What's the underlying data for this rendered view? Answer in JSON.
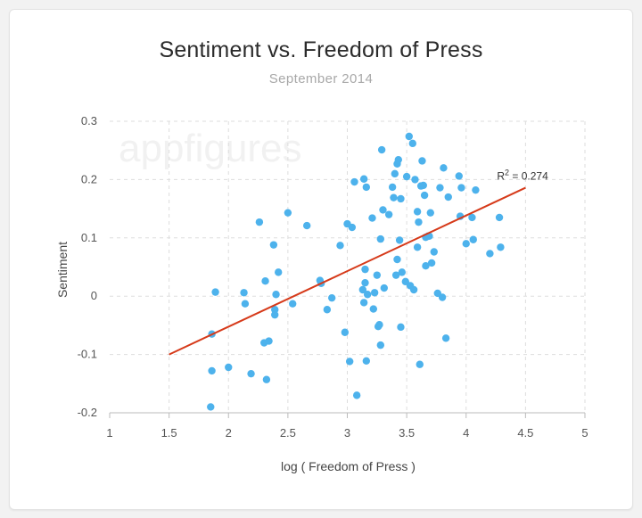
{
  "watermark": "appfigures",
  "chart_data": {
    "type": "scatter",
    "title": "Sentiment vs. Freedom of Press",
    "subtitle": "September 2014",
    "xlabel": "log ( Freedom of Press )",
    "ylabel": "Sentiment",
    "xlim": [
      1,
      5
    ],
    "ylim": [
      -0.2,
      0.3
    ],
    "xticks": [
      "1",
      "1.5",
      "2",
      "2.5",
      "3",
      "3.5",
      "4",
      "4.5",
      "5"
    ],
    "yticks": [
      "-0.2",
      "-0.1",
      "0",
      "0.1",
      "0.2",
      "0.3"
    ],
    "grid": true,
    "point_color": "#4db2ec",
    "trendline": {
      "color": "#d63a1a",
      "x": [
        1.5,
        4.5
      ],
      "y": [
        -0.1,
        0.186
      ],
      "label": "R",
      "label_sup": "2",
      "label_value": " = 0.274"
    },
    "series": [
      {
        "points": [
          [
            1.85,
            -0.19
          ],
          [
            1.86,
            -0.065
          ],
          [
            1.86,
            -0.128
          ],
          [
            1.89,
            0.007
          ],
          [
            2.0,
            -0.122
          ],
          [
            2.13,
            0.006
          ],
          [
            2.14,
            -0.013
          ],
          [
            2.19,
            -0.133
          ],
          [
            2.26,
            0.127
          ],
          [
            2.3,
            -0.08
          ],
          [
            2.31,
            0.026
          ],
          [
            2.32,
            -0.143
          ],
          [
            2.34,
            -0.077
          ],
          [
            2.38,
            0.088
          ],
          [
            2.39,
            -0.023
          ],
          [
            2.39,
            -0.032
          ],
          [
            2.4,
            0.003
          ],
          [
            2.42,
            0.041
          ],
          [
            2.5,
            0.143
          ],
          [
            2.54,
            -0.013
          ],
          [
            2.66,
            0.121
          ],
          [
            2.77,
            0.027
          ],
          [
            2.78,
            0.022
          ],
          [
            2.83,
            -0.023
          ],
          [
            2.87,
            -0.003
          ],
          [
            2.94,
            0.087
          ],
          [
            2.98,
            -0.062
          ],
          [
            3.0,
            0.124
          ],
          [
            3.02,
            -0.112
          ],
          [
            3.04,
            0.118
          ],
          [
            3.06,
            0.196
          ],
          [
            3.08,
            -0.17
          ],
          [
            3.13,
            0.011
          ],
          [
            3.14,
            0.201
          ],
          [
            3.14,
            -0.011
          ],
          [
            3.15,
            0.046
          ],
          [
            3.15,
            0.023
          ],
          [
            3.16,
            0.187
          ],
          [
            3.16,
            -0.111
          ],
          [
            3.17,
            0.003
          ],
          [
            3.21,
            0.134
          ],
          [
            3.22,
            -0.022
          ],
          [
            3.23,
            0.006
          ],
          [
            3.25,
            0.036
          ],
          [
            3.26,
            -0.052
          ],
          [
            3.27,
            -0.049
          ],
          [
            3.28,
            0.098
          ],
          [
            3.28,
            -0.084
          ],
          [
            3.29,
            0.251
          ],
          [
            3.3,
            0.148
          ],
          [
            3.31,
            0.014
          ],
          [
            3.35,
            0.14
          ],
          [
            3.38,
            0.187
          ],
          [
            3.39,
            0.169
          ],
          [
            3.4,
            0.21
          ],
          [
            3.41,
            0.036
          ],
          [
            3.42,
            0.227
          ],
          [
            3.42,
            0.063
          ],
          [
            3.43,
            0.234
          ],
          [
            3.44,
            0.096
          ],
          [
            3.45,
            0.167
          ],
          [
            3.45,
            -0.053
          ],
          [
            3.46,
            0.041
          ],
          [
            3.49,
            0.025
          ],
          [
            3.5,
            0.205
          ],
          [
            3.52,
            0.274
          ],
          [
            3.53,
            0.018
          ],
          [
            3.55,
            0.262
          ],
          [
            3.56,
            0.011
          ],
          [
            3.57,
            0.2
          ],
          [
            3.59,
            0.145
          ],
          [
            3.59,
            0.084
          ],
          [
            3.6,
            0.127
          ],
          [
            3.61,
            -0.117
          ],
          [
            3.62,
            0.189
          ],
          [
            3.63,
            0.232
          ],
          [
            3.64,
            0.19
          ],
          [
            3.65,
            0.173
          ],
          [
            3.66,
            0.101
          ],
          [
            3.66,
            0.052
          ],
          [
            3.68,
            0.103
          ],
          [
            3.69,
            0.103
          ],
          [
            3.7,
            0.143
          ],
          [
            3.71,
            0.057
          ],
          [
            3.73,
            0.076
          ],
          [
            3.76,
            0.005
          ],
          [
            3.78,
            0.186
          ],
          [
            3.8,
            -0.002
          ],
          [
            3.81,
            0.22
          ],
          [
            3.83,
            -0.072
          ],
          [
            3.85,
            0.17
          ],
          [
            3.94,
            0.206
          ],
          [
            3.95,
            0.137
          ],
          [
            3.96,
            0.186
          ],
          [
            4.0,
            0.09
          ],
          [
            4.05,
            0.135
          ],
          [
            4.06,
            0.097
          ],
          [
            4.08,
            0.182
          ],
          [
            4.2,
            0.073
          ],
          [
            4.28,
            0.135
          ],
          [
            4.29,
            0.084
          ]
        ]
      }
    ]
  }
}
